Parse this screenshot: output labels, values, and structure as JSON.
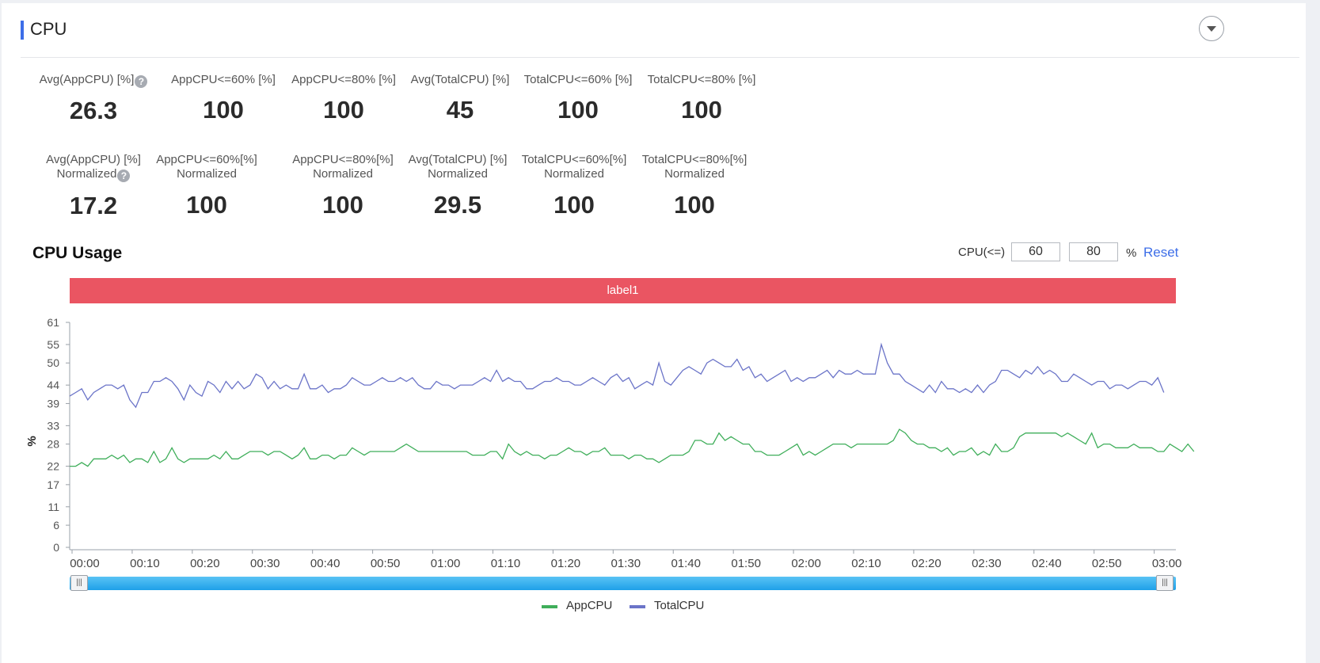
{
  "header": {
    "title": "CPU"
  },
  "metrics_row1": [
    {
      "label": "Avg(AppCPU) [%]",
      "value": "26.3",
      "help": "?"
    },
    {
      "label": "AppCPU<=60% [%]",
      "value": "100"
    },
    {
      "label": "AppCPU<=80% [%]",
      "value": "100"
    },
    {
      "label": "Avg(TotalCPU) [%]",
      "value": "45"
    },
    {
      "label": "TotalCPU<=60% [%]",
      "value": "100"
    },
    {
      "label": "TotalCPU<=80% [%]",
      "value": "100"
    }
  ],
  "metrics_row2": [
    {
      "label": "Avg(AppCPU) [%]",
      "label2": "Normalized",
      "value": "17.2",
      "help": "?"
    },
    {
      "label": "AppCPU<=60%[%]",
      "label2": "Normalized",
      "value": "100"
    },
    {
      "label": "AppCPU<=80%[%]",
      "label2": "Normalized",
      "value": "100"
    },
    {
      "label": "Avg(TotalCPU) [%]",
      "label2": "Normalized",
      "value": "29.5"
    },
    {
      "label": "TotalCPU<=60%[%]",
      "label2": "Normalized",
      "value": "100"
    },
    {
      "label": "TotalCPU<=80%[%]",
      "label2": "Normalized",
      "value": "100"
    }
  ],
  "usage": {
    "title": "CPU Usage",
    "cpu_label": "CPU(<=)",
    "threshold1": "60",
    "threshold2": "80",
    "unit": "%",
    "reset_label": "Reset",
    "band_label": "label1"
  },
  "chart_data": {
    "type": "line",
    "ylabel": "%",
    "xlabel": "",
    "yticks": [
      0,
      6,
      11,
      17,
      22,
      28,
      33,
      39,
      44,
      50,
      55,
      61
    ],
    "ylim": [
      0,
      61
    ],
    "xlim": [
      0,
      184
    ],
    "x_unit": "minutes",
    "xticks": [
      "00:00",
      "00:10",
      "00:20",
      "00:30",
      "00:40",
      "00:50",
      "01:00",
      "01:10",
      "01:20",
      "01:30",
      "01:40",
      "01:50",
      "02:00",
      "02:10",
      "02:20",
      "02:30",
      "02:40",
      "02:50",
      "03:00"
    ],
    "grid": false,
    "legend_position": "bottom-center",
    "series": [
      {
        "name": "AppCPU",
        "color": "#3fae5a",
        "values": [
          22,
          22,
          23,
          22,
          24,
          24,
          24,
          25,
          24,
          25,
          23,
          24,
          24,
          23,
          26,
          23,
          24,
          27,
          24,
          23,
          24,
          24,
          24,
          24,
          25,
          24,
          26,
          24,
          24,
          25,
          26,
          26,
          26,
          25,
          26,
          26,
          25,
          24,
          25,
          27,
          24,
          24,
          25,
          25,
          24,
          25,
          25,
          27,
          26,
          25,
          26,
          26,
          26,
          26,
          26,
          27,
          28,
          27,
          26,
          26,
          26,
          26,
          26,
          26,
          26,
          26,
          26,
          25,
          25,
          25,
          26,
          26,
          24,
          28,
          26,
          25,
          26,
          25,
          25,
          24,
          25,
          25,
          26,
          27,
          26,
          26,
          25,
          26,
          26,
          27,
          25,
          25,
          25,
          24,
          25,
          25,
          24,
          24,
          23,
          24,
          25,
          25,
          25,
          26,
          29,
          29,
          28,
          28,
          31,
          29,
          30,
          29,
          28,
          28,
          26,
          26,
          25,
          25,
          25,
          26,
          27,
          28,
          25,
          26,
          25,
          26,
          27,
          28,
          28,
          28,
          27,
          28,
          28,
          28,
          28,
          28,
          28,
          29,
          32,
          31,
          29,
          28,
          28,
          27,
          27,
          26,
          27,
          25,
          26,
          26,
          27,
          25,
          26,
          25,
          28,
          26,
          26,
          27,
          30,
          31,
          31,
          31,
          31,
          31,
          31,
          30,
          31,
          30,
          29,
          28,
          31,
          27,
          28,
          28,
          27,
          27,
          27,
          28,
          27,
          27,
          27,
          26,
          26,
          28,
          27,
          26,
          28,
          26
        ]
      },
      {
        "name": "TotalCPU",
        "color": "#6b74c8",
        "values": [
          41,
          42,
          43,
          40,
          42,
          43,
          44,
          44,
          43,
          44,
          40,
          38,
          42,
          42,
          45,
          45,
          46,
          45,
          43,
          40,
          44,
          42,
          41,
          45,
          44,
          42,
          45,
          43,
          45,
          43,
          44,
          47,
          46,
          43,
          45,
          43,
          44,
          43,
          43,
          47,
          43,
          43,
          44,
          42,
          43,
          43,
          44,
          46,
          45,
          44,
          44,
          45,
          46,
          45,
          45,
          46,
          45,
          46,
          44,
          43,
          43,
          45,
          44,
          44,
          43,
          44,
          44,
          44,
          45,
          46,
          45,
          48,
          45,
          46,
          45,
          45,
          43,
          43,
          44,
          45,
          45,
          46,
          45,
          45,
          44,
          44,
          45,
          46,
          45,
          44,
          46,
          47,
          45,
          46,
          43,
          44,
          45,
          44,
          50,
          45,
          44,
          46,
          48,
          49,
          48,
          47,
          50,
          51,
          50,
          49,
          49,
          51,
          48,
          49,
          46,
          47,
          45,
          46,
          47,
          48,
          45,
          46,
          45,
          46,
          46,
          47,
          48,
          46,
          48,
          47,
          47,
          48,
          47,
          47,
          47,
          55,
          50,
          47,
          47,
          45,
          44,
          43,
          42,
          44,
          42,
          45,
          43,
          43,
          42,
          43,
          42,
          44,
          42,
          44,
          45,
          48,
          48,
          47,
          46,
          48,
          47,
          49,
          47,
          48,
          47,
          45,
          45,
          47,
          46,
          45,
          44,
          45,
          45,
          43,
          44,
          44,
          43,
          44,
          45,
          45,
          44,
          46,
          42
        ]
      }
    ]
  },
  "slider": {
    "start_handle": "|||",
    "end_handle": "|||"
  }
}
